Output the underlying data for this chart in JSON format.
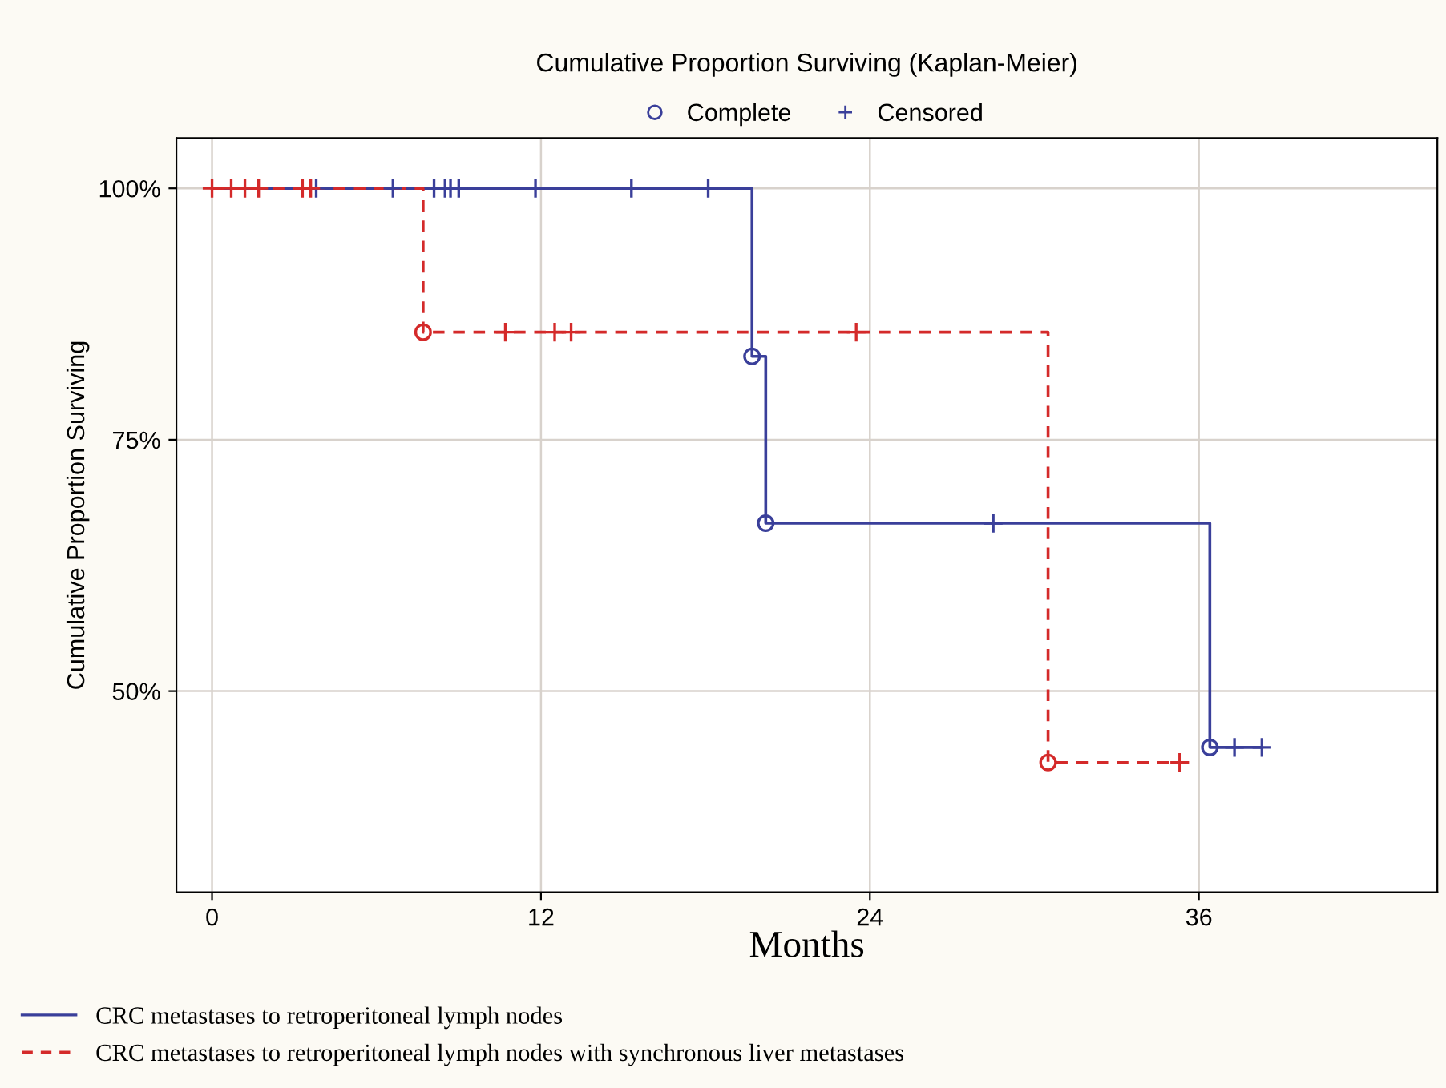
{
  "chart_data": {
    "type": "step",
    "title": "Cumulative Proportion Surviving (Kaplan-Meier)",
    "xlabel": "Months",
    "ylabel": "Cumulative Proportion Surviving",
    "xlim": [
      -1.3,
      44.7
    ],
    "xticks": [
      0,
      12,
      24,
      36
    ],
    "ylim": [
      30,
      105
    ],
    "yticks": [
      {
        "value": 50,
        "label": "50%"
      },
      {
        "value": 75,
        "label": "75%"
      },
      {
        "value": 100,
        "label": "100%"
      }
    ],
    "grid": true,
    "legend": "bottom left",
    "series": [
      {
        "name": "CRC metastases to retroperitoneal lymph nodes",
        "color": "#3a3f9a",
        "line_style": "solid",
        "x": [
          0,
          19.7,
          20.2,
          36.4,
          38.3
        ],
        "values": [
          100,
          83.3,
          66.7,
          44.4,
          44.4
        ]
      },
      {
        "name": "CRC metastases to retroperitoneal lymph nodes with synchronous liver metastases",
        "color": "#d42a2a",
        "line_style": "dashed",
        "x": [
          0,
          7.7,
          30.5,
          35.3
        ],
        "values": [
          100,
          85.7,
          42.9,
          42.9
        ]
      },
      {
        "name": "Complete",
        "type": "scatter",
        "marker": "circle",
        "color": "#3a3f9a",
        "x": [
          19.7,
          20.2,
          36.4,
          7.7,
          30.5
        ],
        "values": [
          83.3,
          66.7,
          44.4,
          85.7,
          42.9
        ],
        "colors": [
          "#3a3f9a",
          "#3a3f9a",
          "#3a3f9a",
          "#d42a2a",
          "#d42a2a"
        ]
      },
      {
        "name": "Censored",
        "type": "scatter",
        "marker": "cross",
        "color": "#3a3f9a",
        "x": [
          3.8,
          6.6,
          8.1,
          8.5,
          8.7,
          9.0,
          11.8,
          15.3,
          18.1,
          28.5,
          37.3,
          38.3,
          0,
          0.7,
          1.2,
          1.7,
          3.3,
          3.6,
          10.7,
          12.5,
          13.1,
          23.5,
          35.3
        ],
        "values": [
          100,
          100,
          100,
          100,
          100,
          100,
          100,
          100,
          100,
          66.7,
          44.4,
          44.4,
          100,
          100,
          100,
          100,
          100,
          100,
          85.7,
          85.7,
          85.7,
          85.7,
          42.9
        ],
        "colors": [
          "#3a3f9a",
          "#3a3f9a",
          "#3a3f9a",
          "#3a3f9a",
          "#3a3f9a",
          "#3a3f9a",
          "#3a3f9a",
          "#3a3f9a",
          "#3a3f9a",
          "#3a3f9a",
          "#3a3f9a",
          "#3a3f9a",
          "#d42a2a",
          "#d42a2a",
          "#d42a2a",
          "#d42a2a",
          "#d42a2a",
          "#d42a2a",
          "#d42a2a",
          "#d42a2a",
          "#d42a2a",
          "#d42a2a",
          "#d42a2a"
        ]
      }
    ]
  }
}
